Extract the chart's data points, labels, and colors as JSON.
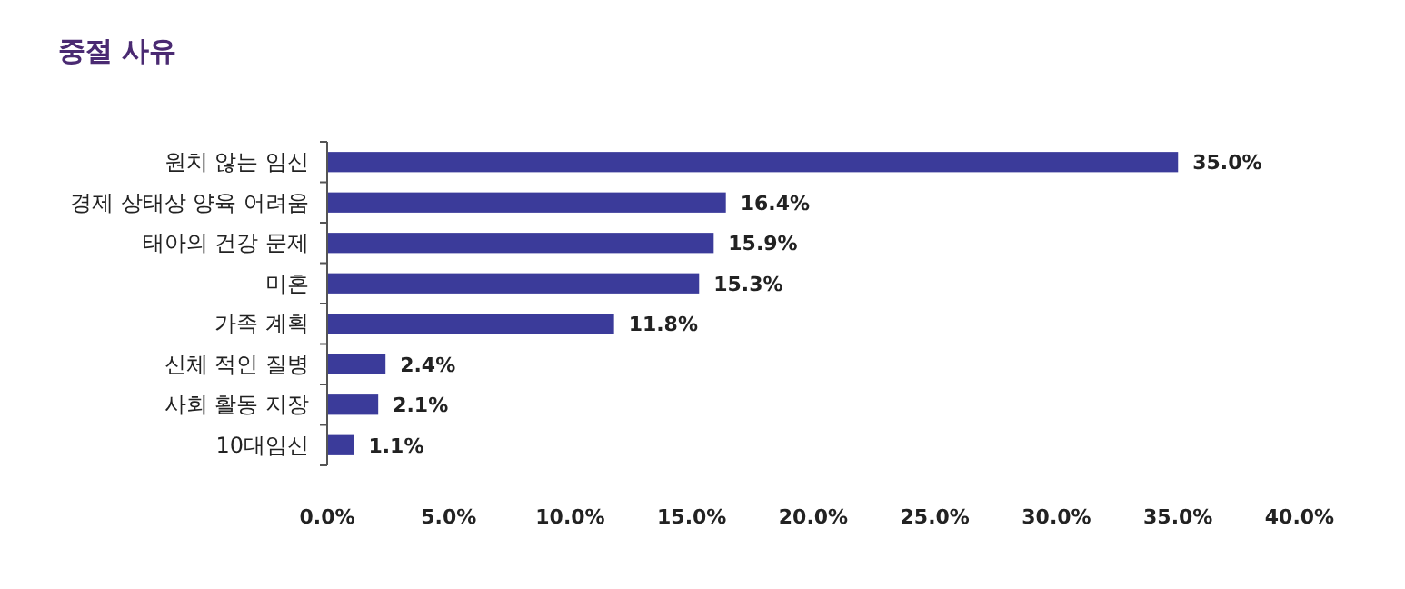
{
  "chart_data": {
    "type": "bar",
    "orientation": "horizontal",
    "title": "중절 사유",
    "categories": [
      "원치 않는 임신",
      "경제 상태상 양육 어려움",
      "태아의 건강 문제",
      "미혼",
      "가족 계획",
      "신체 적인 질병",
      "사회 활동 지장",
      "10대임신"
    ],
    "values": [
      35.0,
      16.4,
      15.9,
      15.3,
      11.8,
      2.4,
      2.1,
      1.1
    ],
    "value_labels": [
      "35.0%",
      "16.4%",
      "15.9%",
      "15.3%",
      "11.8%",
      "2.4%",
      "2.1%",
      "1.1%"
    ],
    "color": "#3b3b9a",
    "xlim": [
      0,
      40
    ],
    "xticks": [
      {
        "value": 0,
        "label": "0.0%"
      },
      {
        "value": 5,
        "label": "5.0%"
      },
      {
        "value": 10,
        "label": "10.0%"
      },
      {
        "value": 15,
        "label": "15.0%"
      },
      {
        "value": 20,
        "label": "20.0%"
      },
      {
        "value": 25,
        "label": "25.0%"
      },
      {
        "value": 30,
        "label": "30.0%"
      },
      {
        "value": 35,
        "label": "35.0%"
      },
      {
        "value": 40,
        "label": "40.0%"
      }
    ],
    "grid": false
  }
}
